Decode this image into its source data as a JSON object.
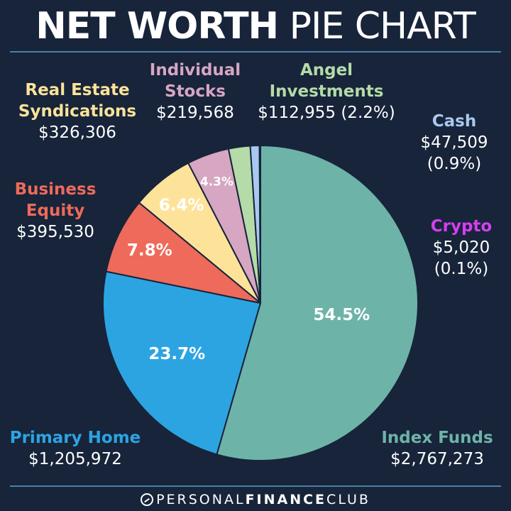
{
  "title_bold": "NET WORTH",
  "title_light": "PIE CHART",
  "footer": {
    "part1": "PERSONAL",
    "part2": "FINANCE",
    "part3": "CLUB"
  },
  "labels": {
    "real_estate": {
      "name_line1": "Real Estate",
      "name_line2": "Syndications",
      "value": "$326,306"
    },
    "individual_stocks": {
      "name_line1": "Individual",
      "name_line2": "Stocks",
      "value": "$219,568"
    },
    "angel": {
      "name_line1": "Angel",
      "name_line2": "Investments",
      "value": "$112,955 (2.2%)"
    },
    "cash": {
      "name": "Cash",
      "value": "$47,509",
      "pct": "(0.9%)"
    },
    "business_equity": {
      "name_line1": "Business",
      "name_line2": "Equity",
      "value": "$395,530"
    },
    "crypto": {
      "name": "Crypto",
      "value": "$5,020",
      "pct": "(0.1%)"
    },
    "primary_home": {
      "name": "Primary Home",
      "value": "$1,205,972"
    },
    "index_funds": {
      "name": "Index Funds",
      "value": "$2,767,273"
    }
  },
  "chart_data": {
    "type": "pie",
    "title": "NET WORTH PIE CHART",
    "slices": [
      {
        "name": "Index Funds",
        "value": 2767273,
        "percent_label": "54.5%",
        "color": "#6db3a8"
      },
      {
        "name": "Primary Home",
        "value": 1205972,
        "percent_label": "23.7%",
        "color": "#2ca4e2"
      },
      {
        "name": "Business Equity",
        "value": 395530,
        "percent_label": "7.8%",
        "color": "#ee6a5a"
      },
      {
        "name": "Real Estate Syndications",
        "value": 326306,
        "percent_label": "6.4%",
        "color": "#fde39a"
      },
      {
        "name": "Individual Stocks",
        "value": 219568,
        "percent_label": "4.3%",
        "color": "#d6a6c3"
      },
      {
        "name": "Angel Investments",
        "value": 112955,
        "percent_label": "",
        "color": "#b4dba8"
      },
      {
        "name": "Cash",
        "value": 47509,
        "percent_label": "",
        "color": "#a9c8ef"
      },
      {
        "name": "Crypto",
        "value": 5020,
        "percent_label": "",
        "color": "#c63ce0"
      }
    ]
  }
}
